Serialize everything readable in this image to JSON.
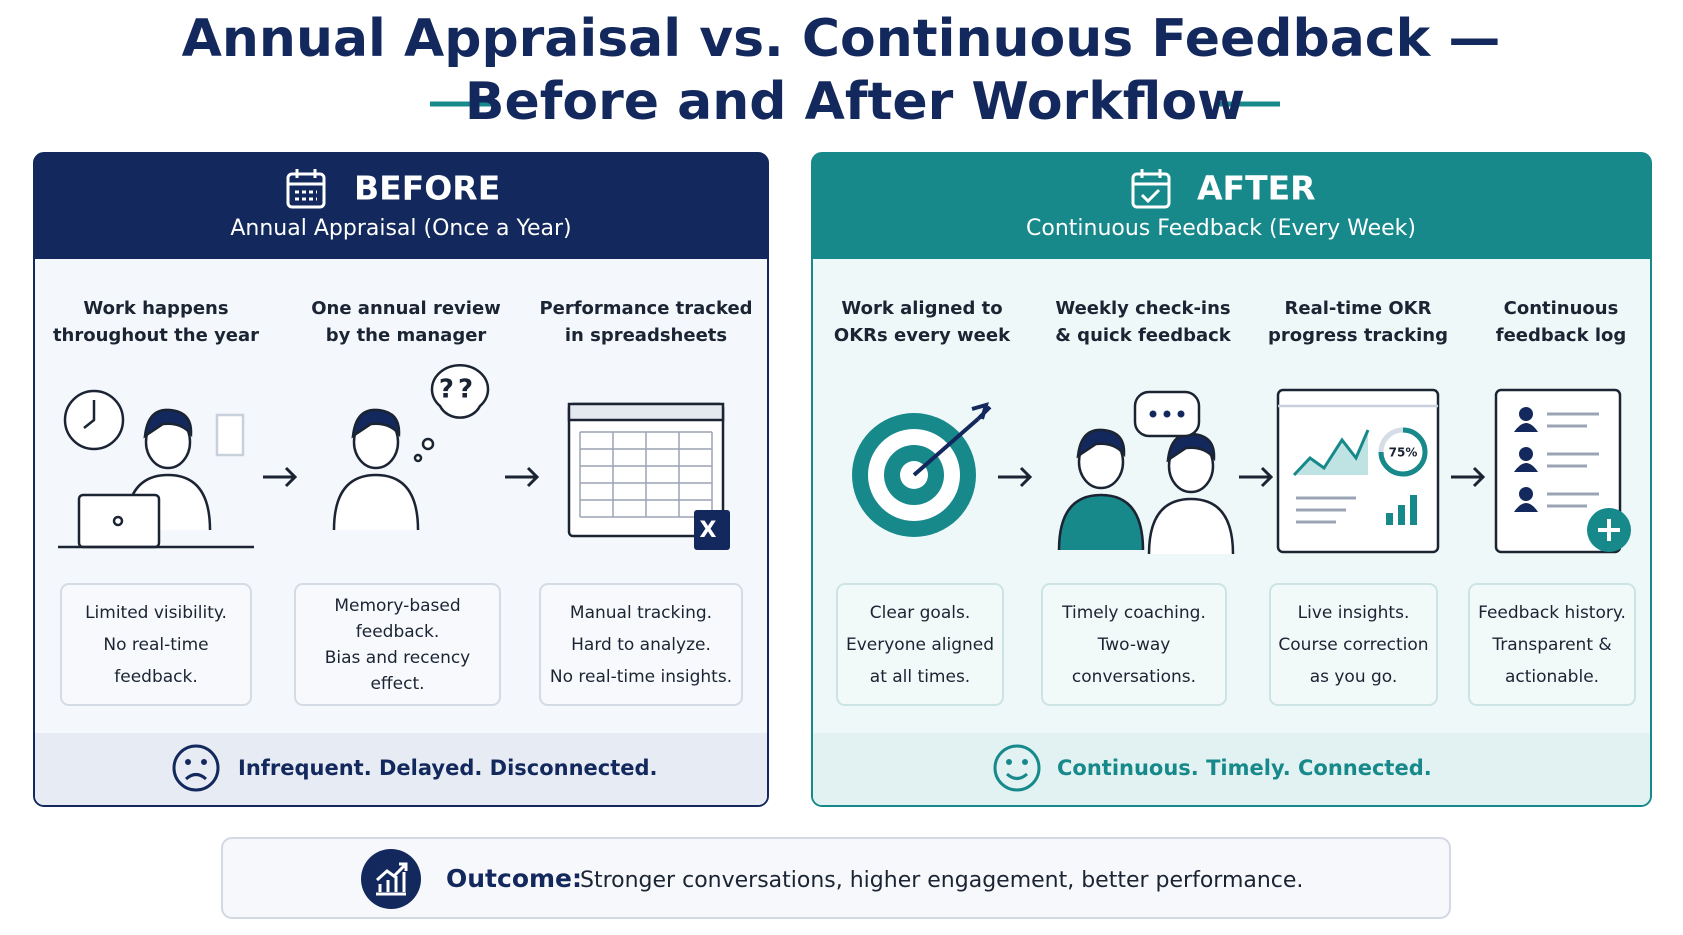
{
  "title": [
    "Annual Appraisal vs. Continuous Feedback —",
    "Before and After Workflow"
  ],
  "before": {
    "label": "BEFORE",
    "subtitle": "Annual Appraisal (Once a Year)",
    "steps": [
      {
        "title": [
          "Work happens",
          "throughout the year"
        ],
        "description": [
          "Limited visibility.",
          "No real-time",
          "feedback."
        ]
      },
      {
        "title": [
          "One annual review",
          "by the manager"
        ],
        "icon_text": "??",
        "description": [
          "Memory-based",
          "feedback.",
          "Bias and recency",
          "effect."
        ]
      },
      {
        "title": [
          "Performance tracked",
          "in spreadsheets"
        ],
        "icon_text": "X",
        "description": [
          "Manual tracking.",
          "Hard to analyze.",
          "No real-time insights."
        ]
      }
    ],
    "summary": "Infrequent. Delayed. Disconnected."
  },
  "after": {
    "label": "AFTER",
    "subtitle": "Continuous Feedback (Every Week)",
    "steps": [
      {
        "title": [
          "Work aligned to",
          "OKRs every week"
        ],
        "description": [
          "Clear goals.",
          "Everyone aligned",
          "at all times."
        ]
      },
      {
        "title": [
          "Weekly check-ins",
          "& quick feedback"
        ],
        "description": [
          "Timely coaching.",
          "Two-way",
          "conversations."
        ]
      },
      {
        "title": [
          "Real-time OKR",
          "progress tracking"
        ],
        "icon_text": "75%",
        "description": [
          "Live insights.",
          "Course correction",
          "as you go."
        ]
      },
      {
        "title": [
          "Continuous",
          "feedback log"
        ],
        "description": [
          "Feedback history.",
          "Transparent &",
          "actionable."
        ]
      }
    ],
    "summary": "Continuous. Timely. Connected."
  },
  "outcome": {
    "label": "Outcome:",
    "text": "Stronger conversations, higher engagement, better performance."
  }
}
